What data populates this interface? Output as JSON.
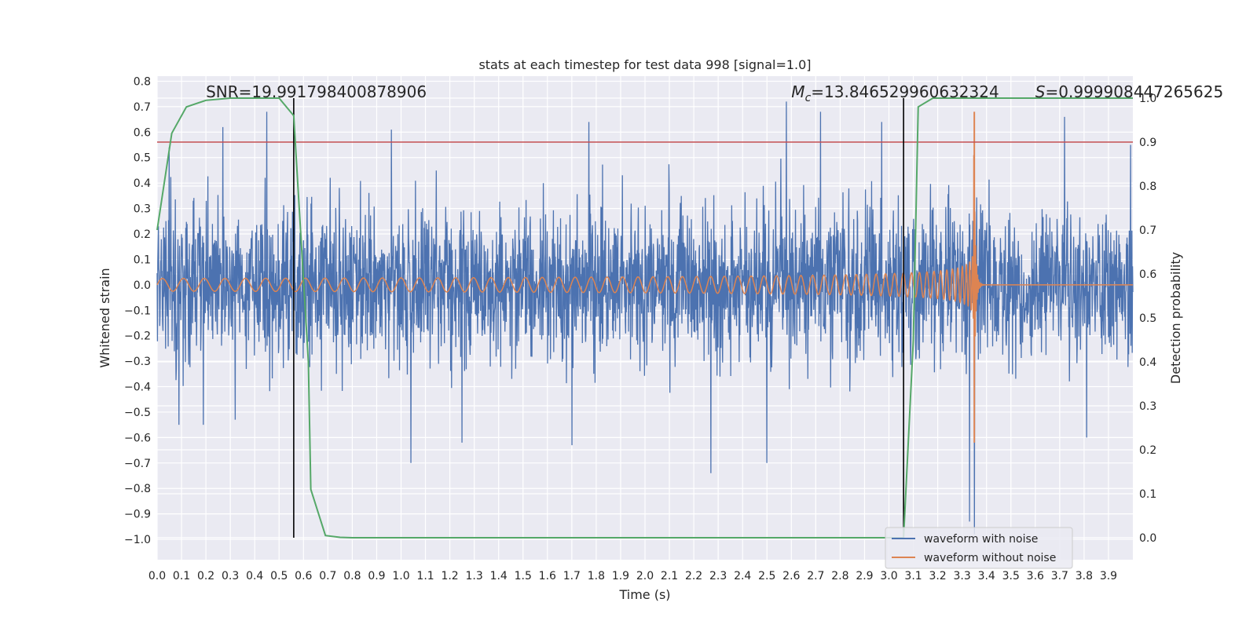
{
  "chart_data": {
    "type": "line",
    "title": "stats at each timestep for test data 998 [signal=1.0]",
    "xlabel": "Time (s)",
    "ylabel_left": "Whitened strain",
    "ylabel_right": "Detection probability",
    "xlim": [
      0.0,
      4.0
    ],
    "ylim_left": [
      -1.08,
      0.82
    ],
    "ylim_right": [
      -0.05,
      1.05
    ],
    "x_ticks": [
      0.0,
      0.1,
      0.2,
      0.3,
      0.4,
      0.5,
      0.6,
      0.7,
      0.8,
      0.9,
      1.0,
      1.1,
      1.2,
      1.3,
      1.4,
      1.5,
      1.6,
      1.7,
      1.8,
      1.9,
      2.0,
      2.1,
      2.2,
      2.3,
      2.4,
      2.5,
      2.6,
      2.7,
      2.8,
      2.9,
      3.0,
      3.1,
      3.2,
      3.3,
      3.4,
      3.5,
      3.6,
      3.7,
      3.8,
      3.9
    ],
    "x_tick_labels": [
      "0.0",
      "0.1",
      "0.2",
      "0.3",
      "0.4",
      "0.5",
      "0.6",
      "0.7",
      "0.8",
      "0.9",
      "1.0",
      "1.1",
      "1.2",
      "1.3",
      "1.4",
      "1.5",
      "1.6",
      "1.7",
      "1.8",
      "1.9",
      "2.0",
      "2.1",
      "2.2",
      "2.3",
      "2.4",
      "2.5",
      "2.6",
      "2.7",
      "2.8",
      "2.9",
      "3.0",
      "3.1",
      "3.2",
      "3.3",
      "3.4",
      "3.5",
      "3.6",
      "3.7",
      "3.8",
      "3.9"
    ],
    "y_left_ticks": [
      0.8,
      0.7,
      0.6,
      0.5,
      0.4,
      0.3,
      0.2,
      0.1,
      0.0,
      -0.1,
      -0.2,
      -0.3,
      -0.4,
      -0.5,
      -0.6,
      -0.7,
      -0.8,
      -0.9,
      -1.0
    ],
    "y_left_tick_labels": [
      "0.8",
      "0.7",
      "0.6",
      "0.5",
      "0.4",
      "0.3",
      "0.2",
      "0.1",
      "0.0",
      "−0.1",
      "−0.2",
      "−0.3",
      "−0.4",
      "−0.5",
      "−0.6",
      "−0.7",
      "−0.8",
      "−0.9",
      "−1.0"
    ],
    "y_right_ticks": [
      1.0,
      0.9,
      0.8,
      0.7,
      0.6,
      0.5,
      0.4,
      0.3,
      0.2,
      0.1,
      0.0
    ],
    "y_right_tick_labels": [
      "1.0",
      "0.9",
      "0.8",
      "0.7",
      "0.6",
      "0.5",
      "0.4",
      "0.3",
      "0.2",
      "0.1",
      "0.0"
    ],
    "grid": true,
    "legend_placement": "lower right",
    "series": [
      {
        "name": "waveform with noise",
        "axis": "left",
        "color": "#4c72b0",
        "kind": "noise",
        "x_range": [
          0.0,
          4.0
        ],
        "typical_amplitude": 0.2,
        "peak_samples": [
          {
            "x": 0.05,
            "y": 0.54
          },
          {
            "x": 0.09,
            "y": -0.55
          },
          {
            "x": 0.19,
            "y": -0.55
          },
          {
            "x": 0.27,
            "y": 0.62
          },
          {
            "x": 0.32,
            "y": -0.53
          },
          {
            "x": 0.45,
            "y": 0.68
          },
          {
            "x": 0.57,
            "y": -0.27
          },
          {
            "x": 0.96,
            "y": 0.61
          },
          {
            "x": 1.04,
            "y": -0.7
          },
          {
            "x": 1.25,
            "y": -0.62
          },
          {
            "x": 1.77,
            "y": 0.64
          },
          {
            "x": 1.7,
            "y": -0.63
          },
          {
            "x": 2.27,
            "y": -0.74
          },
          {
            "x": 2.5,
            "y": -0.7
          },
          {
            "x": 2.58,
            "y": 0.72
          },
          {
            "x": 2.72,
            "y": 0.68
          },
          {
            "x": 2.97,
            "y": 0.64
          },
          {
            "x": 3.33,
            "y": -0.93
          },
          {
            "x": 3.35,
            "y": -0.98
          },
          {
            "x": 3.72,
            "y": 0.66
          },
          {
            "x": 3.81,
            "y": -0.6
          },
          {
            "x": 3.99,
            "y": 0.55
          }
        ]
      },
      {
        "name": "waveform without noise",
        "axis": "left",
        "color": "#dd8452",
        "kind": "chirp",
        "x_start": 0.0,
        "x_merger": 3.35,
        "amplitude_start": 0.025,
        "amplitude_peak": 0.68,
        "amplitude_min": -0.62
      },
      {
        "axis": "right",
        "color": "#55a868",
        "kind": "probability",
        "points": [
          {
            "x": 0.0,
            "y": 0.7
          },
          {
            "x": 0.06,
            "y": 0.92
          },
          {
            "x": 0.12,
            "y": 0.98
          },
          {
            "x": 0.2,
            "y": 0.995
          },
          {
            "x": 0.3,
            "y": 1.0
          },
          {
            "x": 0.5,
            "y": 1.0
          },
          {
            "x": 0.56,
            "y": 0.96
          },
          {
            "x": 0.62,
            "y": 0.4
          },
          {
            "x": 0.63,
            "y": 0.11
          },
          {
            "x": 0.69,
            "y": 0.005
          },
          {
            "x": 0.75,
            "y": 0.001
          },
          {
            "x": 0.8,
            "y": 0.0
          },
          {
            "x": 3.06,
            "y": 0.0
          },
          {
            "x": 3.1,
            "y": 0.45
          },
          {
            "x": 3.12,
            "y": 0.98
          },
          {
            "x": 3.18,
            "y": 1.0
          },
          {
            "x": 4.0,
            "y": 1.0
          }
        ]
      }
    ],
    "threshold": {
      "axis": "right",
      "y": 0.9,
      "color": "#c44e52"
    },
    "vertical_markers": [
      {
        "x": 0.56,
        "color": "#000000"
      },
      {
        "x": 3.06,
        "color": "#000000"
      }
    ],
    "annotations": [
      {
        "text": "SNR=19.991798400878906",
        "x": 0.2
      },
      {
        "text": "=13.846529960632324",
        "prefix_symbol": "M",
        "prefix_subscript": "c",
        "x": 2.6
      },
      {
        "text": "=0.999908447265625",
        "prefix_symbol": "S",
        "x": 3.6
      }
    ]
  }
}
